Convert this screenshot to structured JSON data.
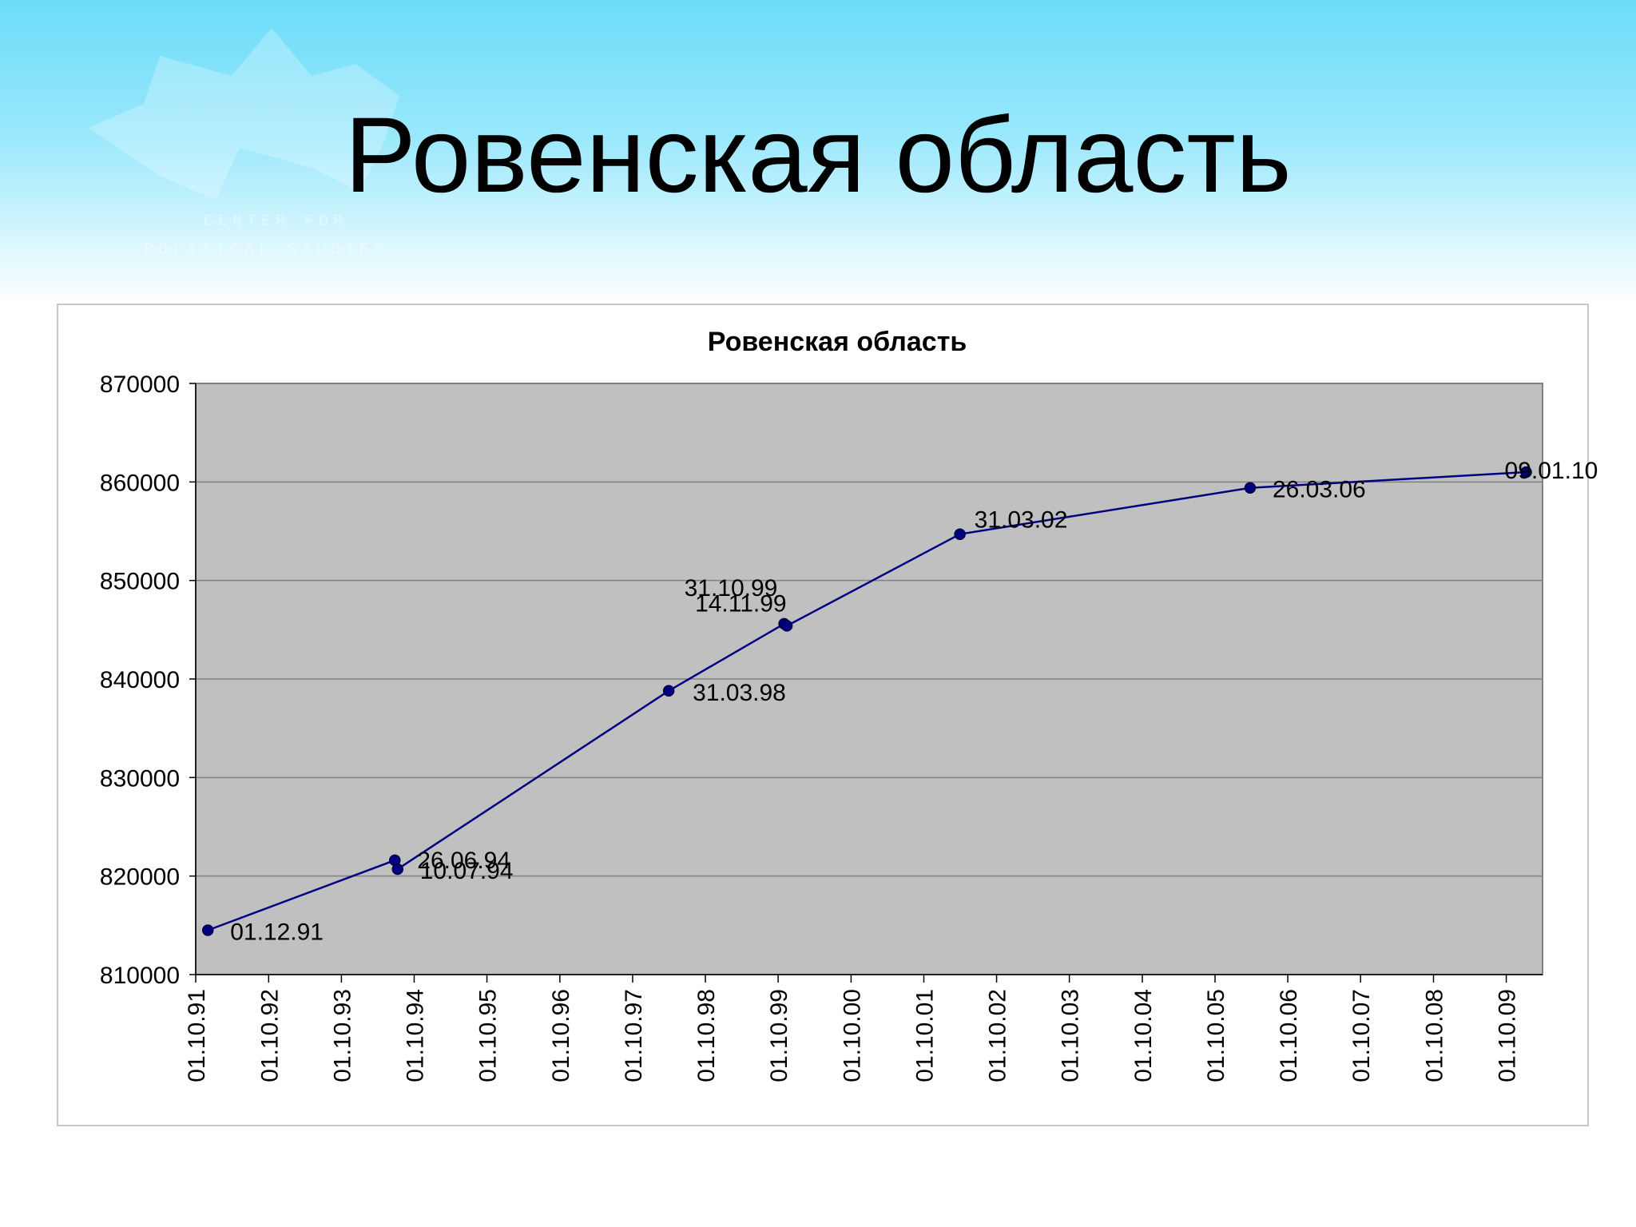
{
  "slide": {
    "title": "Ровенская область"
  },
  "logo": {
    "text_line1": "CENTER FOR",
    "text_line2": "POLITICAL STUDIES"
  },
  "chart_data": {
    "type": "line",
    "title": "Ровенская область",
    "xlabel": "",
    "ylabel": "",
    "ylim": [
      810000,
      870000
    ],
    "yticks": [
      810000,
      820000,
      830000,
      840000,
      850000,
      860000,
      870000
    ],
    "xlim": [
      "1991-10-01",
      "2010-04-01"
    ],
    "xticks": [
      "01.10.91",
      "01.10.92",
      "01.10.93",
      "01.10.94",
      "01.10.95",
      "01.10.96",
      "01.10.97",
      "01.10.98",
      "01.10.99",
      "01.10.00",
      "01.10.01",
      "01.10.02",
      "01.10.03",
      "01.10.04",
      "01.10.05",
      "01.10.06",
      "01.10.07",
      "01.10.08",
      "01.10.09"
    ],
    "grid": true,
    "legend": "none",
    "series": [
      {
        "color": "#000080",
        "points": [
          {
            "x": "1991-12-01",
            "y": 814500,
            "label": "01.12.91"
          },
          {
            "x": "1994-06-26",
            "y": 821600,
            "label": "26.06.94"
          },
          {
            "x": "1994-07-10",
            "y": 820700,
            "label": "10.07.94"
          },
          {
            "x": "1998-03-31",
            "y": 838800,
            "label": "31.03.98"
          },
          {
            "x": "1999-10-31",
            "y": 845600,
            "label": "31.10.99"
          },
          {
            "x": "1999-11-14",
            "y": 845400,
            "label": "14.11.99"
          },
          {
            "x": "2002-03-31",
            "y": 854700,
            "label": "31.03.02"
          },
          {
            "x": "2006-03-26",
            "y": 859400,
            "label": "26.03.06"
          },
          {
            "x": "2010-01-09",
            "y": 861000,
            "label": "09.01.10"
          }
        ]
      }
    ],
    "plot_background": "#c0c0c0"
  }
}
